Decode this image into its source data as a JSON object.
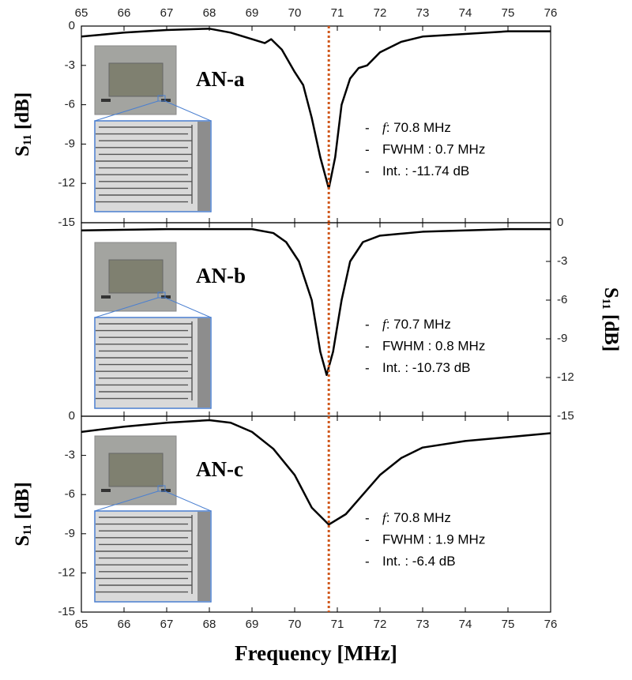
{
  "chart_data": [
    {
      "type": "line",
      "label": "AN-a",
      "xlim": [
        65,
        76
      ],
      "xticks": [
        65,
        66,
        67,
        68,
        69,
        70,
        71,
        72,
        73,
        74,
        75,
        76
      ],
      "xtick_labels": "top",
      "ylim": [
        -15,
        0
      ],
      "yticks": [
        0,
        -3,
        -6,
        -9,
        -12,
        -15
      ],
      "ylabel": "S",
      "ylabel_sub": "11",
      "ylabel_unit": "[dB]",
      "marker_x": 70.8,
      "marker_color": "#d0581c",
      "x": [
        65,
        66,
        67,
        68,
        68.5,
        69,
        69.3,
        69.45,
        69.7,
        70,
        70.2,
        70.4,
        70.6,
        70.8,
        70.95,
        71.1,
        71.3,
        71.5,
        71.7,
        72,
        72.5,
        73,
        74,
        75,
        76
      ],
      "series": [
        {
          "color": "#000000",
          "values": [
            -0.8,
            -0.5,
            -0.3,
            -0.2,
            -0.5,
            -1.0,
            -1.3,
            -1.0,
            -1.8,
            -3.5,
            -4.5,
            -7,
            -10,
            -12.4,
            -10,
            -6,
            -4,
            -3.2,
            -3.0,
            -2.0,
            -1.2,
            -0.8,
            -0.6,
            -0.4,
            -0.4
          ]
        }
      ],
      "annotations": [
        {
          "bullet": "-",
          "italic": "f",
          "text": ": 70.8 MHz"
        },
        {
          "bullet": "-",
          "text": "FWHM : 0.7 MHz"
        },
        {
          "bullet": "-",
          "text": "Int. : -11.74 dB"
        }
      ]
    },
    {
      "type": "line",
      "label": "AN-b",
      "xlim": [
        65,
        76
      ],
      "xticks": [
        65,
        66,
        67,
        68,
        69,
        70,
        71,
        72,
        73,
        74,
        75,
        76
      ],
      "xtick_labels": "none",
      "y2lim": [
        -15,
        0
      ],
      "y2ticks": [
        0,
        -3,
        -6,
        -9,
        -12,
        -15
      ],
      "y2label": "S",
      "y2label_sub": "11",
      "y2label_unit": "[dB]",
      "marker_x": 70.8,
      "marker_color": "#d0581c",
      "x": [
        65,
        67,
        69,
        69.5,
        69.8,
        70.1,
        70.4,
        70.6,
        70.75,
        70.9,
        71.1,
        71.3,
        71.6,
        72,
        73,
        74,
        75,
        76
      ],
      "series": [
        {
          "color": "#000000",
          "axis": "y2",
          "values": [
            -0.6,
            -0.5,
            -0.5,
            -0.8,
            -1.5,
            -3,
            -6,
            -10,
            -11.8,
            -10,
            -6,
            -3,
            -1.5,
            -1.0,
            -0.7,
            -0.6,
            -0.5,
            -0.5
          ]
        }
      ],
      "annotations": [
        {
          "bullet": "-",
          "italic": "f",
          "text": ": 70.7 MHz"
        },
        {
          "bullet": "-",
          "text": "FWHM : 0.8 MHz"
        },
        {
          "bullet": "-",
          "text": "Int. : -10.73 dB"
        }
      ]
    },
    {
      "type": "line",
      "label": "AN-c",
      "xlim": [
        65,
        76
      ],
      "xticks": [
        65,
        66,
        67,
        68,
        69,
        70,
        71,
        72,
        73,
        74,
        75,
        76
      ],
      "xtick_labels": "bottom",
      "xlabel": "Frequency [MHz]",
      "ylim": [
        -15,
        0
      ],
      "yticks": [
        0,
        -3,
        -6,
        -9,
        -12,
        -15
      ],
      "ylabel": "S",
      "ylabel_sub": "11",
      "ylabel_unit": "[dB]",
      "marker_x": 70.8,
      "marker_color": "#d0581c",
      "x": [
        65,
        66,
        67,
        68,
        68.5,
        69,
        69.5,
        70,
        70.4,
        70.8,
        71.2,
        71.6,
        72,
        72.5,
        73,
        74,
        75,
        76
      ],
      "series": [
        {
          "color": "#000000",
          "values": [
            -1.2,
            -0.8,
            -0.5,
            -0.3,
            -0.5,
            -1.2,
            -2.5,
            -4.5,
            -7,
            -8.3,
            -7.5,
            -6,
            -4.5,
            -3.2,
            -2.4,
            -1.9,
            -1.6,
            -1.3
          ]
        }
      ],
      "annotations": [
        {
          "bullet": "-",
          "italic": "f",
          "text": ": 70.8 MHz"
        },
        {
          "bullet": "-",
          "text": "FWHM : 1.9 MHz"
        },
        {
          "bullet": "-",
          "text": "Int. : -6.4 dB"
        }
      ]
    }
  ]
}
